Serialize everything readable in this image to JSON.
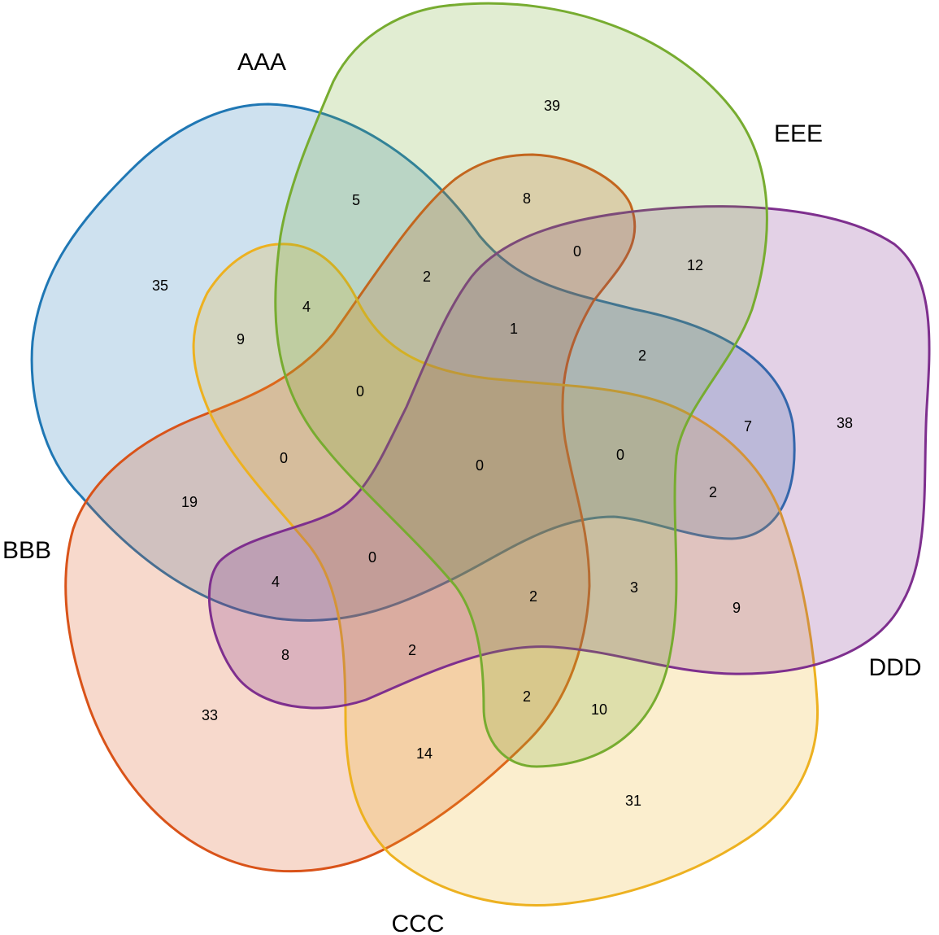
{
  "sets": [
    {
      "id": "AAA",
      "label": "AAA",
      "color": "#1F77B4"
    },
    {
      "id": "BBB",
      "label": "BBB",
      "color": "#D95319"
    },
    {
      "id": "CCC",
      "label": "CCC",
      "color": "#EDB120"
    },
    {
      "id": "DDD",
      "label": "DDD",
      "color": "#7E2F8E"
    },
    {
      "id": "EEE",
      "label": "EEE",
      "color": "#77AC30"
    }
  ],
  "regions": [
    {
      "sets": [
        "EEE"
      ],
      "value": "39"
    },
    {
      "sets": [
        "AAA"
      ],
      "value": "35"
    },
    {
      "sets": [
        "DDD"
      ],
      "value": "38"
    },
    {
      "sets": [
        "BBB"
      ],
      "value": "33"
    },
    {
      "sets": [
        "CCC"
      ],
      "value": "31"
    },
    {
      "sets": [
        "AAA",
        "EEE"
      ],
      "value": "5"
    },
    {
      "sets": [
        "BBB",
        "EEE"
      ],
      "value": "8"
    },
    {
      "sets": [
        "BBB",
        "DDD",
        "EEE"
      ],
      "value": "0"
    },
    {
      "sets": [
        "DDD",
        "EEE"
      ],
      "value": "12"
    },
    {
      "sets": [
        "AAA",
        "BBB",
        "EEE"
      ],
      "value": "2"
    },
    {
      "sets": [
        "AAA",
        "CCC",
        "EEE"
      ],
      "value": "4"
    },
    {
      "sets": [
        "AAA",
        "CCC"
      ],
      "value": "9"
    },
    {
      "sets": [
        "AAA",
        "BBB",
        "DDD",
        "EEE"
      ],
      "value": "1"
    },
    {
      "sets": [
        "AAA",
        "DDD",
        "EEE"
      ],
      "value": "2"
    },
    {
      "sets": [
        "AAA",
        "BBB",
        "CCC",
        "EEE"
      ],
      "value": "0"
    },
    {
      "sets": [
        "AAA",
        "DDD"
      ],
      "value": "7"
    },
    {
      "sets": [
        "AAA",
        "BBB",
        "CCC"
      ],
      "value": "0"
    },
    {
      "sets": [
        "AAA",
        "BBB",
        "CCC",
        "DDD",
        "EEE"
      ],
      "value": "0"
    },
    {
      "sets": [
        "AAA",
        "CCC",
        "DDD",
        "EEE"
      ],
      "value": "0"
    },
    {
      "sets": [
        "AAA",
        "BBB"
      ],
      "value": "19"
    },
    {
      "sets": [
        "AAA",
        "CCC",
        "DDD"
      ],
      "value": "2"
    },
    {
      "sets": [
        "AAA",
        "BBB",
        "CCC",
        "DDD"
      ],
      "value": "0"
    },
    {
      "sets": [
        "AAA",
        "BBB",
        "DDD"
      ],
      "value": "4"
    },
    {
      "sets": [
        "BBB",
        "CCC",
        "DDD",
        "EEE"
      ],
      "value": "2"
    },
    {
      "sets": [
        "CCC",
        "DDD",
        "EEE"
      ],
      "value": "3"
    },
    {
      "sets": [
        "CCC",
        "DDD"
      ],
      "value": "9"
    },
    {
      "sets": [
        "BBB",
        "DDD"
      ],
      "value": "8"
    },
    {
      "sets": [
        "BBB",
        "CCC",
        "DDD"
      ],
      "value": "2"
    },
    {
      "sets": [
        "BBB",
        "CCC",
        "EEE"
      ],
      "value": "2"
    },
    {
      "sets": [
        "CCC",
        "EEE"
      ],
      "value": "10"
    },
    {
      "sets": [
        "BBB",
        "CCC"
      ],
      "value": "14"
    }
  ]
}
